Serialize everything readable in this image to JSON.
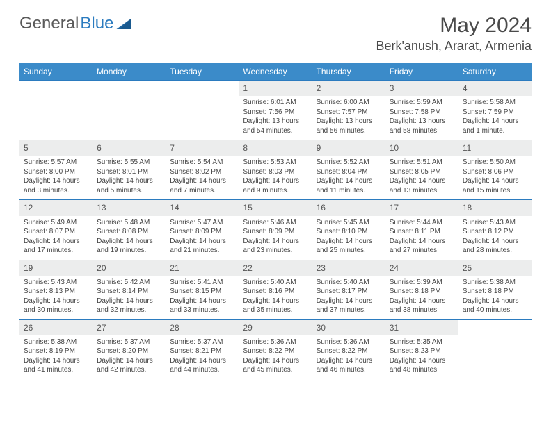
{
  "brand": {
    "part1": "General",
    "part2": "Blue"
  },
  "title": "May 2024",
  "location": "Berk'anush, Ararat, Armenia",
  "theme": {
    "header_bg": "#3b8bc9",
    "header_text": "#ffffff",
    "daynum_bg": "#eceded",
    "border_color": "#2b7bbf",
    "text_color": "#444444",
    "title_color": "#4a4a4a"
  },
  "weekdays": [
    "Sunday",
    "Monday",
    "Tuesday",
    "Wednesday",
    "Thursday",
    "Friday",
    "Saturday"
  ],
  "weeks": [
    [
      null,
      null,
      null,
      {
        "n": "1",
        "sunrise": "6:01 AM",
        "sunset": "7:56 PM",
        "daylight": "13 hours and 54 minutes."
      },
      {
        "n": "2",
        "sunrise": "6:00 AM",
        "sunset": "7:57 PM",
        "daylight": "13 hours and 56 minutes."
      },
      {
        "n": "3",
        "sunrise": "5:59 AM",
        "sunset": "7:58 PM",
        "daylight": "13 hours and 58 minutes."
      },
      {
        "n": "4",
        "sunrise": "5:58 AM",
        "sunset": "7:59 PM",
        "daylight": "14 hours and 1 minute."
      }
    ],
    [
      {
        "n": "5",
        "sunrise": "5:57 AM",
        "sunset": "8:00 PM",
        "daylight": "14 hours and 3 minutes."
      },
      {
        "n": "6",
        "sunrise": "5:55 AM",
        "sunset": "8:01 PM",
        "daylight": "14 hours and 5 minutes."
      },
      {
        "n": "7",
        "sunrise": "5:54 AM",
        "sunset": "8:02 PM",
        "daylight": "14 hours and 7 minutes."
      },
      {
        "n": "8",
        "sunrise": "5:53 AM",
        "sunset": "8:03 PM",
        "daylight": "14 hours and 9 minutes."
      },
      {
        "n": "9",
        "sunrise": "5:52 AM",
        "sunset": "8:04 PM",
        "daylight": "14 hours and 11 minutes."
      },
      {
        "n": "10",
        "sunrise": "5:51 AM",
        "sunset": "8:05 PM",
        "daylight": "14 hours and 13 minutes."
      },
      {
        "n": "11",
        "sunrise": "5:50 AM",
        "sunset": "8:06 PM",
        "daylight": "14 hours and 15 minutes."
      }
    ],
    [
      {
        "n": "12",
        "sunrise": "5:49 AM",
        "sunset": "8:07 PM",
        "daylight": "14 hours and 17 minutes."
      },
      {
        "n": "13",
        "sunrise": "5:48 AM",
        "sunset": "8:08 PM",
        "daylight": "14 hours and 19 minutes."
      },
      {
        "n": "14",
        "sunrise": "5:47 AM",
        "sunset": "8:09 PM",
        "daylight": "14 hours and 21 minutes."
      },
      {
        "n": "15",
        "sunrise": "5:46 AM",
        "sunset": "8:09 PM",
        "daylight": "14 hours and 23 minutes."
      },
      {
        "n": "16",
        "sunrise": "5:45 AM",
        "sunset": "8:10 PM",
        "daylight": "14 hours and 25 minutes."
      },
      {
        "n": "17",
        "sunrise": "5:44 AM",
        "sunset": "8:11 PM",
        "daylight": "14 hours and 27 minutes."
      },
      {
        "n": "18",
        "sunrise": "5:43 AM",
        "sunset": "8:12 PM",
        "daylight": "14 hours and 28 minutes."
      }
    ],
    [
      {
        "n": "19",
        "sunrise": "5:43 AM",
        "sunset": "8:13 PM",
        "daylight": "14 hours and 30 minutes."
      },
      {
        "n": "20",
        "sunrise": "5:42 AM",
        "sunset": "8:14 PM",
        "daylight": "14 hours and 32 minutes."
      },
      {
        "n": "21",
        "sunrise": "5:41 AM",
        "sunset": "8:15 PM",
        "daylight": "14 hours and 33 minutes."
      },
      {
        "n": "22",
        "sunrise": "5:40 AM",
        "sunset": "8:16 PM",
        "daylight": "14 hours and 35 minutes."
      },
      {
        "n": "23",
        "sunrise": "5:40 AM",
        "sunset": "8:17 PM",
        "daylight": "14 hours and 37 minutes."
      },
      {
        "n": "24",
        "sunrise": "5:39 AM",
        "sunset": "8:18 PM",
        "daylight": "14 hours and 38 minutes."
      },
      {
        "n": "25",
        "sunrise": "5:38 AM",
        "sunset": "8:18 PM",
        "daylight": "14 hours and 40 minutes."
      }
    ],
    [
      {
        "n": "26",
        "sunrise": "5:38 AM",
        "sunset": "8:19 PM",
        "daylight": "14 hours and 41 minutes."
      },
      {
        "n": "27",
        "sunrise": "5:37 AM",
        "sunset": "8:20 PM",
        "daylight": "14 hours and 42 minutes."
      },
      {
        "n": "28",
        "sunrise": "5:37 AM",
        "sunset": "8:21 PM",
        "daylight": "14 hours and 44 minutes."
      },
      {
        "n": "29",
        "sunrise": "5:36 AM",
        "sunset": "8:22 PM",
        "daylight": "14 hours and 45 minutes."
      },
      {
        "n": "30",
        "sunrise": "5:36 AM",
        "sunset": "8:22 PM",
        "daylight": "14 hours and 46 minutes."
      },
      {
        "n": "31",
        "sunrise": "5:35 AM",
        "sunset": "8:23 PM",
        "daylight": "14 hours and 48 minutes."
      },
      null
    ]
  ],
  "labels": {
    "sunrise": "Sunrise:",
    "sunset": "Sunset:",
    "daylight": "Daylight:"
  }
}
